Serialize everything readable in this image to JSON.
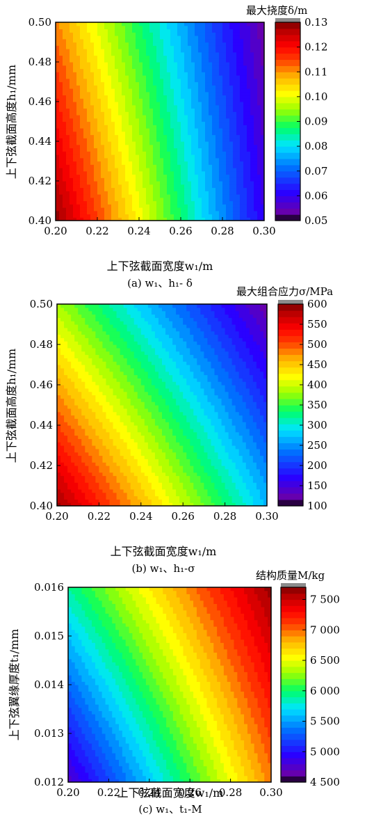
{
  "chart_data": [
    {
      "type": "heatmap",
      "colorbar_title": "最大挠度δ/m",
      "xlabel": "上下弦截面宽度w₁/m",
      "ylabel": "上下弦截面高度h₁/mm",
      "caption": "(a)  w₁、h₁- δ",
      "xlim": [
        0.2,
        0.3
      ],
      "ylim": [
        0.4,
        0.5
      ],
      "xticks": [
        "0.20",
        "0.22",
        "0.24",
        "0.26",
        "0.28",
        "0.30"
      ],
      "yticks": [
        "0.40",
        "0.42",
        "0.44",
        "0.46",
        "0.48",
        "0.50"
      ],
      "clim": [
        0.05,
        0.13
      ],
      "cticks": [
        "0.05",
        "0.06",
        "0.07",
        "0.08",
        "0.09",
        "0.10",
        "0.11",
        "0.12",
        "0.13"
      ],
      "corner_values": {
        "x0.20_y0.40": 0.129,
        "x0.30_y0.40": 0.06,
        "x0.20_y0.50": 0.111,
        "x0.30_y0.50": 0.053
      },
      "levels": 32,
      "colormap": "jet"
    },
    {
      "type": "heatmap",
      "colorbar_title": "最大组合应力σ/MPa",
      "xlabel": "上下弦截面宽度w₁/m",
      "ylabel": "上下弦截面高度h₁/mm",
      "caption": "(b)  w₁、h₁-σ",
      "xlim": [
        0.2,
        0.3
      ],
      "ylim": [
        0.4,
        0.5
      ],
      "xticks": [
        "0.20",
        "0.22",
        "0.24",
        "0.26",
        "0.28",
        "0.30"
      ],
      "yticks": [
        "0.40",
        "0.42",
        "0.44",
        "0.46",
        "0.48",
        "0.50"
      ],
      "clim": [
        100,
        600
      ],
      "cticks": [
        "100",
        "150",
        "200",
        "250",
        "300",
        "350",
        "400",
        "450",
        "500",
        "550",
        "600"
      ],
      "corner_values": {
        "x0.20_y0.40": 590,
        "x0.30_y0.40": 270,
        "x0.20_y0.50": 385,
        "x0.30_y0.50": 120
      },
      "levels": 32,
      "colormap": "jet"
    },
    {
      "type": "heatmap",
      "colorbar_title": "结构质量M/kg",
      "xlabel": "上下弦截面宽度w₁/m",
      "ylabel": "上下弦翼缘厚度t₁/mm",
      "caption": "(c)  w₁、t₁-M",
      "xlim": [
        0.2,
        0.3
      ],
      "ylim": [
        0.012,
        0.016
      ],
      "xticks": [
        "0.20",
        "0.22",
        "0.24",
        "0.26",
        "0.28",
        "0.30"
      ],
      "yticks": [
        "0.012",
        "0.013",
        "0.014",
        "0.015",
        "0.016"
      ],
      "clim": [
        4500,
        7700
      ],
      "cticks": [
        "4 500",
        "5 000",
        "5 500",
        "6 000",
        "6 500",
        "7 000",
        "7 500"
      ],
      "cticks_values": [
        4500,
        5000,
        5500,
        6000,
        6500,
        7000,
        7500
      ],
      "corner_values": {
        "x0.20_y0.012": 4750,
        "x0.30_y0.012": 6950,
        "x0.20_y0.016": 5900,
        "x0.30_y0.016": 7650
      },
      "levels": 32,
      "colormap": "jet"
    }
  ]
}
